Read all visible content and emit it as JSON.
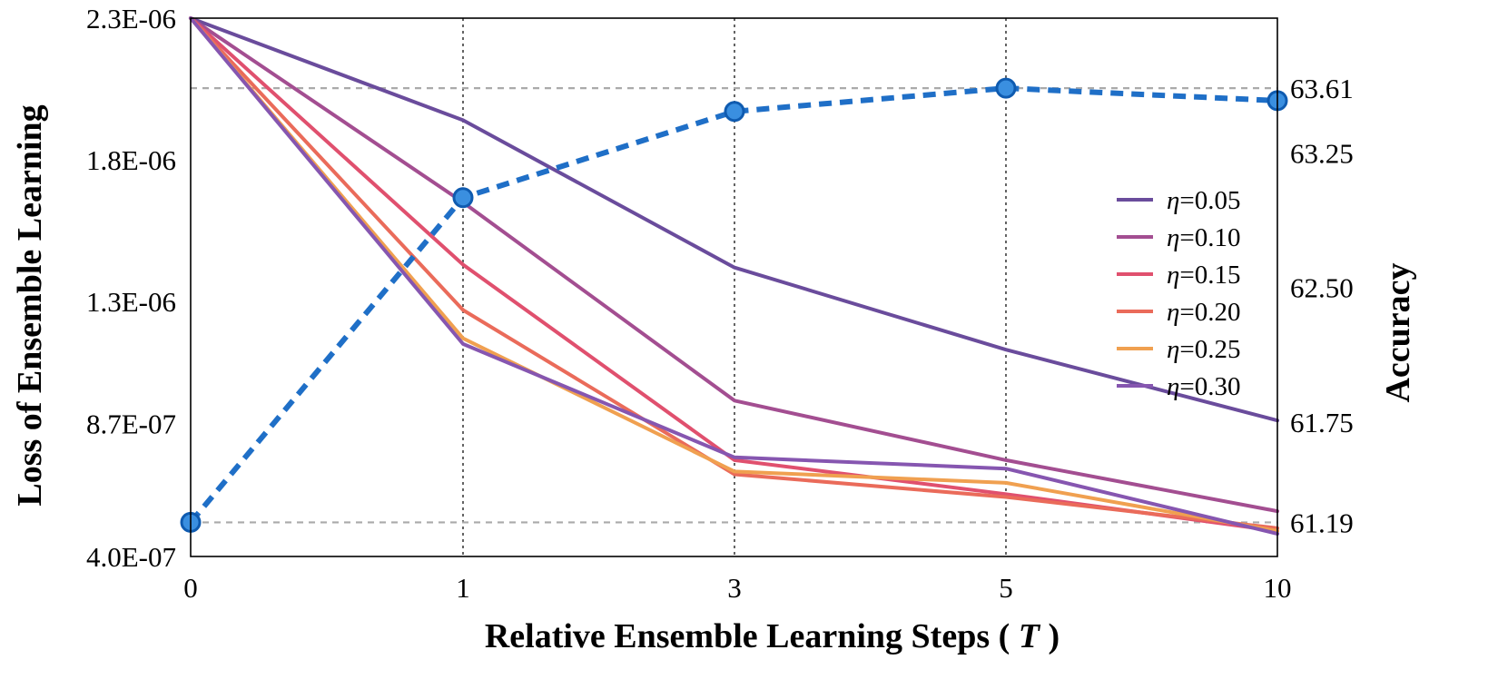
{
  "chart_data": {
    "type": "line",
    "xlabel_main": "Relative Ensemble Learning Steps (",
    "xlabel_var": "T",
    "xlabel_end": ")",
    "ylabel": "Loss of Ensemble Learning",
    "y2label": "Accuracy",
    "categories": [
      "0",
      "1",
      "3",
      "5",
      "10"
    ],
    "y_ticks": [
      "4.0E-07",
      "8.7E-07",
      "1.3E-06",
      "1.8E-06",
      "2.3E-06"
    ],
    "y_tick_values": [
      4e-07,
      8.7e-07,
      1.3e-06,
      1.8e-06,
      2.3e-06
    ],
    "ylim": [
      4e-07,
      2.3e-06
    ],
    "y2_ticks": [
      "61.19",
      "61.75",
      "62.50",
      "63.25",
      "63.61"
    ],
    "y2_tick_values": [
      61.19,
      61.75,
      62.5,
      63.25,
      63.61
    ],
    "y2lim": [
      61.0,
      64.0
    ],
    "legend_position": "right-center",
    "series": [
      {
        "name": "η=0.05",
        "symbol": "η",
        "label": "=0.05",
        "color": "#6a4c9c",
        "values": [
          2.3e-06,
          1.94e-06,
          1.42e-06,
          1.13e-06,
          8.8e-07
        ]
      },
      {
        "name": "η=0.10",
        "symbol": "η",
        "label": "=0.10",
        "color": "#a34e91",
        "values": [
          2.3e-06,
          1.65e-06,
          9.5e-07,
          7.4e-07,
          5.6e-07
        ]
      },
      {
        "name": "η=0.15",
        "symbol": "η",
        "label": "=0.15",
        "color": "#e0506e",
        "values": [
          2.3e-06,
          1.43e-06,
          7.4e-07,
          6.2e-07,
          4.9e-07
        ]
      },
      {
        "name": "η=0.20",
        "symbol": "η",
        "label": "=0.20",
        "color": "#ea6b5a",
        "values": [
          2.3e-06,
          1.27e-06,
          6.9e-07,
          6.1e-07,
          5e-07
        ]
      },
      {
        "name": "η=0.25",
        "symbol": "η",
        "label": "=0.25",
        "color": "#f0a050",
        "values": [
          2.3e-06,
          1.17e-06,
          7e-07,
          6.6e-07,
          4.9e-07
        ]
      },
      {
        "name": "η=0.30",
        "symbol": "η",
        "label": "=0.30",
        "color": "#8656b0",
        "values": [
          2.3e-06,
          1.15e-06,
          7.5e-07,
          7.1e-07,
          4.8e-07
        ]
      }
    ],
    "accuracy": {
      "color": "#1f6fc7",
      "values": [
        61.19,
        63.0,
        63.48,
        63.61,
        63.54
      ]
    },
    "reference_lines_accuracy": [
      63.61,
      61.19
    ],
    "vertical_grid_at": [
      "1",
      "3",
      "5"
    ]
  }
}
